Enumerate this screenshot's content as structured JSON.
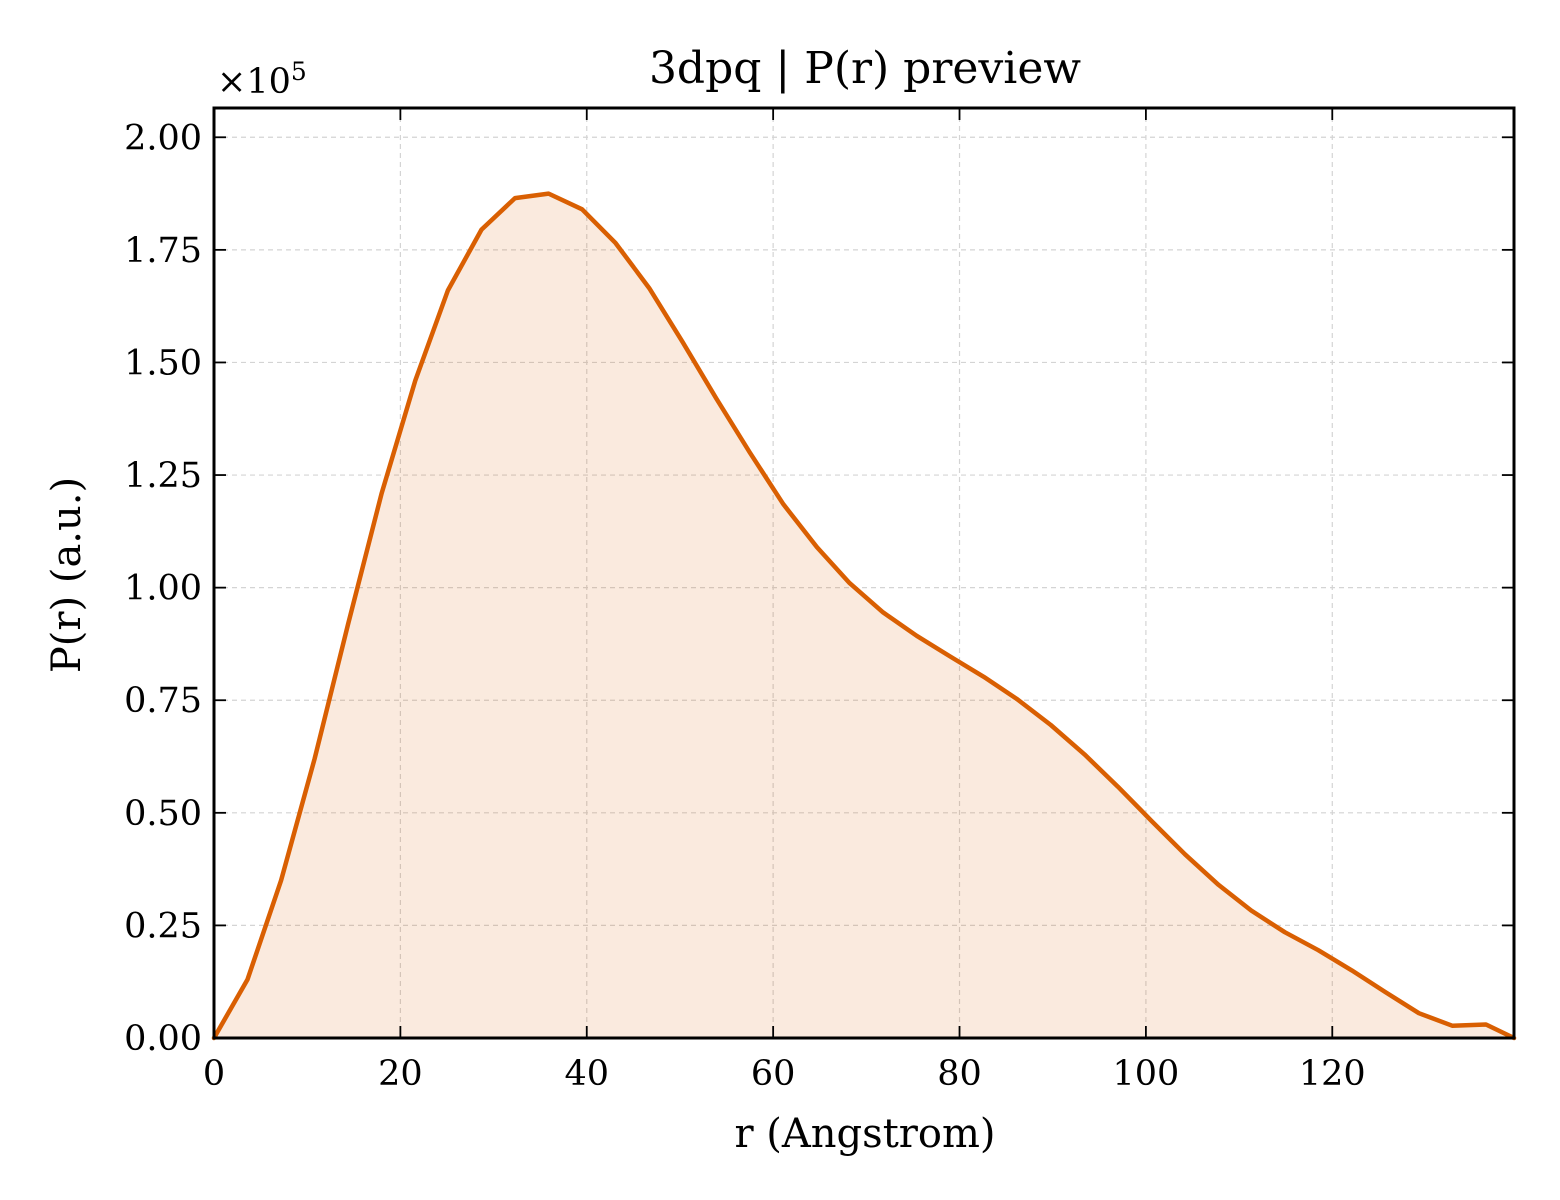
{
  "chart_data": {
    "type": "area",
    "title": "3dpq | P(r) preview",
    "xlabel": "r (Angstrom)",
    "ylabel": "P(r) (a.u.)",
    "y_multiplier": {
      "prefix": "×10",
      "exponent": "5"
    },
    "xlim": [
      0,
      139.5
    ],
    "ylim": [
      0,
      2.065
    ],
    "x_scale": "linear",
    "y_scale": "linear",
    "grid": true,
    "legend": "none",
    "x_ticks": [
      0,
      20,
      40,
      60,
      80,
      100,
      120
    ],
    "x_tick_labels": [
      "0",
      "20",
      "40",
      "60",
      "80",
      "100",
      "120"
    ],
    "y_ticks": [
      0,
      0.25,
      0.5,
      0.75,
      1.0,
      1.25,
      1.5,
      1.75,
      2.0
    ],
    "y_tick_labels": [
      "0.00",
      "0.25",
      "0.50",
      "0.75",
      "1.00",
      "1.25",
      "1.50",
      "1.75",
      "2.00"
    ],
    "series": [
      {
        "color": "#d95f02",
        "fill_color": "#d95f02",
        "fill_opacity": 0.13,
        "x": [
          0,
          3.6,
          7.2,
          10.8,
          14.4,
          18,
          21.6,
          25.1,
          28.7,
          32.3,
          35.9,
          39.5,
          43.1,
          46.7,
          50.3,
          53.9,
          57.5,
          61.1,
          64.7,
          68.2,
          71.8,
          75.4,
          79,
          82.6,
          86.2,
          89.8,
          93.4,
          97,
          100.6,
          104.2,
          107.8,
          111.3,
          114.9,
          118.5,
          122.1,
          125.7,
          129.3,
          132.9,
          136.5,
          139.5
        ],
        "y": [
          0.0,
          0.13,
          0.35,
          0.62,
          0.92,
          1.21,
          1.46,
          1.66,
          1.795,
          1.865,
          1.875,
          1.84,
          1.765,
          1.665,
          1.545,
          1.42,
          1.3,
          1.185,
          1.09,
          1.01,
          0.945,
          0.893,
          0.847,
          0.802,
          0.752,
          0.695,
          0.63,
          0.558,
          0.482,
          0.408,
          0.34,
          0.283,
          0.235,
          0.195,
          0.15,
          0.102,
          0.055,
          0.027,
          0.03,
          0.0
        ]
      }
    ]
  }
}
